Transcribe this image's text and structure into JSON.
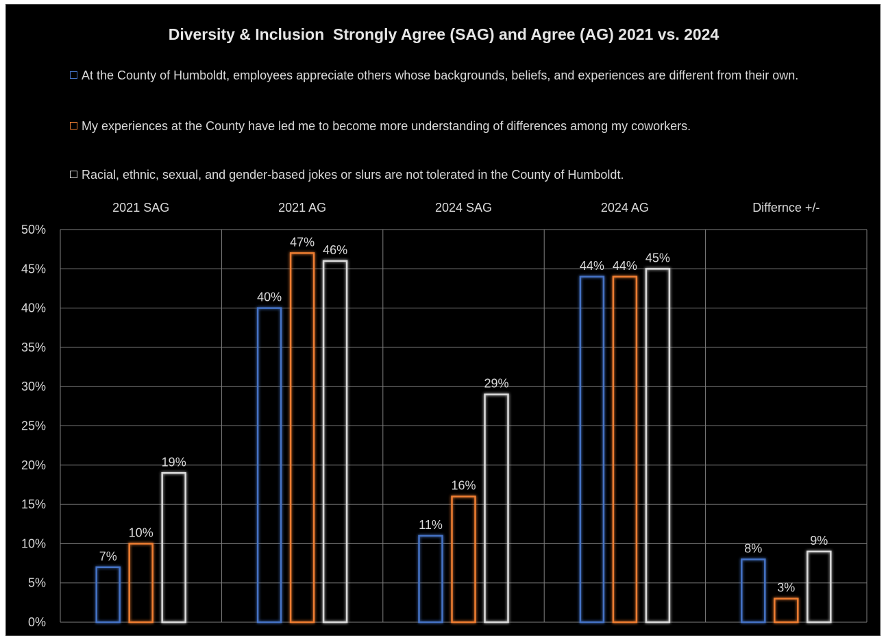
{
  "chart_data": {
    "type": "bar",
    "title": "Diversity & Inclusion  Strongly Agree (SAG) and Agree (AG) 2021 vs. 2024",
    "categories": [
      "2021 SAG",
      "2021 AG",
      "2024 SAG",
      "2024 AG",
      "Differnce +/-"
    ],
    "series": [
      {
        "name": "At the County of Humboldt, employees appreciate others whose backgrounds, beliefs, and experiences are different from their own.",
        "color": "#4472c4",
        "values": [
          7,
          40,
          11,
          44,
          8
        ],
        "labels": [
          "7%",
          "40%",
          "11%",
          "44%",
          "8%"
        ]
      },
      {
        "name": "My experiences at the County have led me to become more understanding of differences among my coworkers.",
        "color": "#ed7d31",
        "values": [
          10,
          47,
          16,
          44,
          3
        ],
        "labels": [
          "10%",
          "47%",
          "16%",
          "44%",
          "3%"
        ]
      },
      {
        "name": "Racial, ethnic, sexual, and gender-based jokes or slurs are not tolerated in the County of Humboldt.",
        "color": "#d9d9d9",
        "values": [
          19,
          46,
          29,
          45,
          9
        ],
        "labels": [
          "19%",
          "46%",
          "29%",
          "45%",
          "9%"
        ]
      }
    ],
    "ylim": [
      0,
      50
    ],
    "yticks": [
      "0%",
      "5%",
      "10%",
      "15%",
      "20%",
      "25%",
      "30%",
      "35%",
      "40%",
      "45%",
      "50%"
    ],
    "xlabel": "",
    "ylabel": "",
    "category_axis_position": "top",
    "legend_position": "top",
    "grid": true,
    "colors": {
      "background": "#000000",
      "grid": "#7f7f7f",
      "text": "#d9d9d9"
    }
  }
}
